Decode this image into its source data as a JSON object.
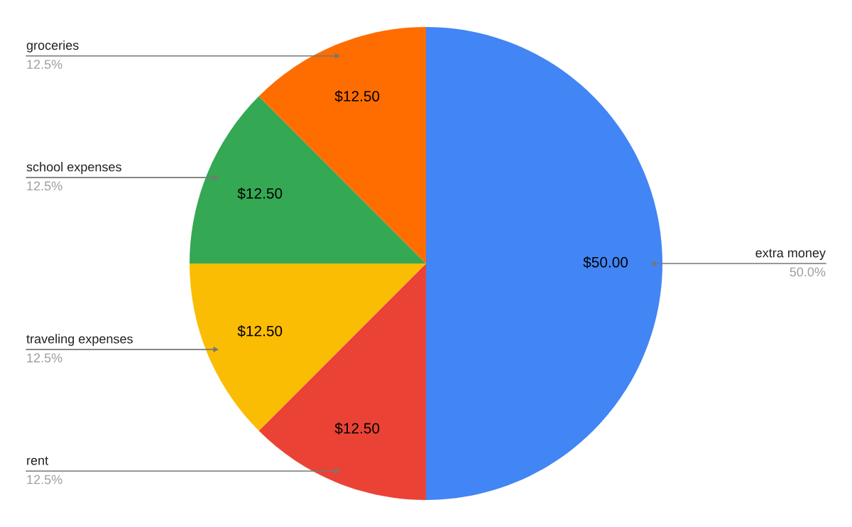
{
  "chart_data": {
    "type": "pie",
    "categories": [
      "extra money",
      "rent",
      "traveling expenses",
      "school expenses",
      "groceries"
    ],
    "values": [
      50,
      12.5,
      12.5,
      12.5,
      12.5
    ],
    "colors": [
      "#4285f4",
      "#ea4335",
      "#fbbc04",
      "#34a853",
      "#ff6d01"
    ],
    "value_labels": [
      "$50.00",
      "$12.50",
      "$12.50",
      "$12.50",
      "$12.50"
    ],
    "annotations": [
      {
        "text": "50.0%",
        "x": "extra money"
      },
      {
        "text": "12.5%",
        "x": "rent"
      },
      {
        "text": "12.5%",
        "x": "traveling expenses"
      },
      {
        "text": "12.5%",
        "x": "school expenses"
      },
      {
        "text": "12.5%",
        "x": "groceries"
      }
    ],
    "legend": false
  }
}
